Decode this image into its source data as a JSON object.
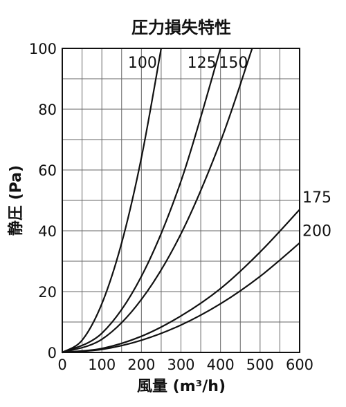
{
  "chart_data": {
    "type": "line",
    "title": "圧力損失特性",
    "xlabel": "風量 (m³/h)",
    "ylabel": "静圧 (Pa)",
    "xlim": [
      0,
      600
    ],
    "ylim": [
      0,
      100
    ],
    "x_ticks": [
      0,
      100,
      200,
      300,
      400,
      500,
      600
    ],
    "y_ticks": [
      0,
      20,
      40,
      60,
      80,
      100
    ],
    "grid": true,
    "series": [
      {
        "name": "100",
        "x": [
          0,
          50,
          100,
          150,
          200,
          250
        ],
        "y": [
          0,
          4,
          16,
          36,
          64,
          100
        ]
      },
      {
        "name": "125",
        "x": [
          0,
          100,
          200,
          300,
          400
        ],
        "y": [
          0,
          6.3,
          25,
          56.3,
          100
        ]
      },
      {
        "name": "150",
        "x": [
          0,
          100,
          200,
          300,
          400,
          480
        ],
        "y": [
          0,
          4.3,
          17.4,
          39,
          69.4,
          100
        ]
      },
      {
        "name": "175",
        "x": [
          0,
          100,
          200,
          300,
          400,
          500,
          600
        ],
        "y": [
          0,
          1.3,
          5.3,
          12,
          21,
          33,
          47
        ]
      },
      {
        "name": "200",
        "x": [
          0,
          100,
          200,
          300,
          400,
          500,
          600
        ],
        "y": [
          0,
          1,
          4,
          9,
          16,
          25,
          36
        ]
      }
    ]
  }
}
